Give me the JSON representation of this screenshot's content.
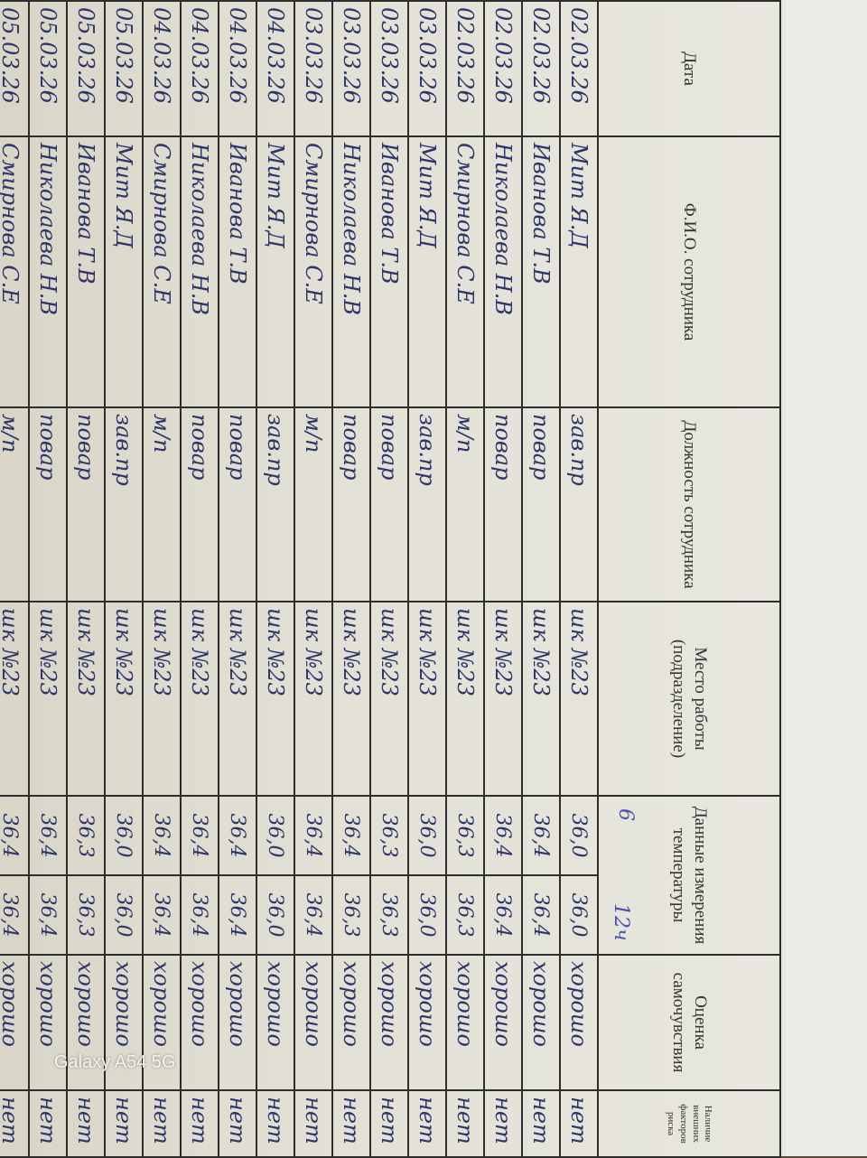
{
  "headers": [
    "Дата",
    "Ф.И.О. сотрудника",
    "Должность сотрудника",
    "Место работы (подразделение)",
    "Данные измерения температуры",
    "Оценка самочувствия",
    "Наличие внешних факторов риска"
  ],
  "temp_annotations": [
    "6",
    "12ч"
  ],
  "rows": [
    {
      "date": "02.03.26",
      "name": "Мит Я.Д",
      "position": "зав.пр",
      "place": "шк №23",
      "t1": "36,0",
      "t2": "36,0",
      "state": "хорошо",
      "risk": "нет"
    },
    {
      "date": "02.03.26",
      "name": "Иванова Т.В",
      "position": "повар",
      "place": "шк №23",
      "t1": "36,4",
      "t2": "36,4",
      "state": "хорошо",
      "risk": "нет"
    },
    {
      "date": "02.03.26",
      "name": "Николаева Н.В",
      "position": "повар",
      "place": "шк №23",
      "t1": "36,4",
      "t2": "36,4",
      "state": "хорошо",
      "risk": "нет"
    },
    {
      "date": "02.03.26",
      "name": "Смирнова С.Е",
      "position": "м/п",
      "place": "шк №23",
      "t1": "36,3",
      "t2": "36,3",
      "state": "хорошо",
      "risk": "нет"
    },
    {
      "date": "03.03.26",
      "name": "Мит Я.Д",
      "position": "зав.пр",
      "place": "шк №23",
      "t1": "36,0",
      "t2": "36,0",
      "state": "хорошо",
      "risk": "нет"
    },
    {
      "date": "03.03.26",
      "name": "Иванова Т.В",
      "position": "повар",
      "place": "шк №23",
      "t1": "36,3",
      "t2": "36,3",
      "state": "хорошо",
      "risk": "нет"
    },
    {
      "date": "03.03.26",
      "name": "Николаева Н.В",
      "position": "повар",
      "place": "шк №23",
      "t1": "36,4",
      "t2": "36,3",
      "state": "хорошо",
      "risk": "нет"
    },
    {
      "date": "03.03.26",
      "name": "Смирнова С.Е",
      "position": "м/п",
      "place": "шк №23",
      "t1": "36,4",
      "t2": "36,4",
      "state": "хорошо",
      "risk": "нет"
    },
    {
      "date": "04.03.26",
      "name": "Мит Я.Д",
      "position": "зав.пр",
      "place": "шк №23",
      "t1": "36,0",
      "t2": "36,0",
      "state": "хорошо",
      "risk": "нет"
    },
    {
      "date": "04.03.26",
      "name": "Иванова Т.В",
      "position": "повар",
      "place": "шк №23",
      "t1": "36,4",
      "t2": "36,4",
      "state": "хорошо",
      "risk": "нет"
    },
    {
      "date": "04.03.26",
      "name": "Николаева Н.В",
      "position": "повар",
      "place": "шк №23",
      "t1": "36,4",
      "t2": "36,4",
      "state": "хорошо",
      "risk": "нет"
    },
    {
      "date": "04.03.26",
      "name": "Смирнова С.Е",
      "position": "м/п",
      "place": "шк №23",
      "t1": "36,4",
      "t2": "36,4",
      "state": "хорошо",
      "risk": "нет"
    },
    {
      "date": "05.03.26",
      "name": "Мит Я.Д",
      "position": "зав.пр",
      "place": "шк №23",
      "t1": "36,0",
      "t2": "36,0",
      "state": "хорошо",
      "risk": "нет"
    },
    {
      "date": "05.03.26",
      "name": "Иванова Т.В",
      "position": "повар",
      "place": "шк №23",
      "t1": "36,3",
      "t2": "36,3",
      "state": "хорошо",
      "risk": "нет"
    },
    {
      "date": "05.03.26",
      "name": "Николаева Н.В",
      "position": "повар",
      "place": "шк №23",
      "t1": "36,4",
      "t2": "36,4",
      "state": "хорошо",
      "risk": "нет"
    },
    {
      "date": "05.03.26",
      "name": "Смирнова С.Е",
      "position": "м/п",
      "place": "шк №23",
      "t1": "36,4",
      "t2": "36,4",
      "state": "хорошо",
      "risk": "нет"
    }
  ],
  "watermark": "Galaxy A54 5G"
}
